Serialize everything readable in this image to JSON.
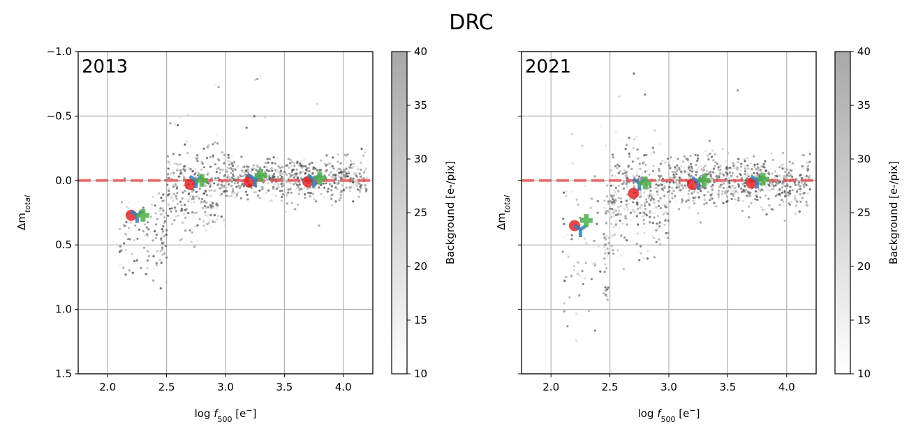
{
  "title": "DRC",
  "chart_data": [
    {
      "type": "scatter",
      "panel_label": "2013",
      "xlabel_main": "log ",
      "xlabel_var": "f",
      "xlabel_sub": "500",
      "xlabel_unit": " [e",
      "xlabel_sup": "−",
      "xlabel_end": "]",
      "ylabel_main": "Δm",
      "ylabel_sub": "total",
      "xlim": [
        1.75,
        4.25
      ],
      "ylim": [
        1.5,
        -1.0
      ],
      "xticks": [
        2.0,
        2.5,
        3.0,
        3.5,
        4.0
      ],
      "xtick_labels": [
        "2.0",
        "2.5",
        "3.0",
        "3.5",
        "4.0"
      ],
      "yticks": [
        -1.0,
        -0.5,
        0.0,
        0.5,
        1.0,
        1.5
      ],
      "ytick_labels": [
        "−1.0",
        "−0.5",
        "0.0",
        "0.5",
        "1.0",
        "1.5"
      ],
      "reference_line_y": 0.0,
      "grid": true,
      "scatter_cloud": {
        "color_quantity": "Background [e-/pix]",
        "range": [
          10,
          40
        ],
        "seed": 11
      },
      "series": [
        {
          "name": "circle",
          "marker": "circle",
          "color": "#e41a1c",
          "points": [
            [
              2.2,
              0.27
            ],
            [
              2.7,
              0.03
            ],
            [
              3.2,
              0.01
            ],
            [
              3.7,
              0.01
            ]
          ]
        },
        {
          "name": "triangle",
          "marker": "tri_down",
          "color": "#377eb8",
          "points": [
            [
              2.25,
              0.27
            ],
            [
              2.75,
              0.0
            ],
            [
              3.25,
              -0.01
            ],
            [
              3.75,
              -0.01
            ]
          ]
        },
        {
          "name": "plus",
          "marker": "plus",
          "color": "#4daf4a",
          "points": [
            [
              2.3,
              0.27
            ],
            [
              2.8,
              0.0
            ],
            [
              3.3,
              -0.04
            ],
            [
              3.8,
              -0.02
            ]
          ]
        }
      ],
      "colorbar": {
        "label": "Background [e-/pix]",
        "range": [
          10,
          40
        ],
        "ticks": [
          10,
          15,
          20,
          25,
          30,
          35,
          40
        ],
        "tick_labels": [
          "10",
          "15",
          "20",
          "25",
          "30",
          "35",
          "40"
        ]
      }
    },
    {
      "type": "scatter",
      "panel_label": "2021",
      "xlabel_main": "log ",
      "xlabel_var": "f",
      "xlabel_sub": "500",
      "xlabel_unit": " [e",
      "xlabel_sup": "−",
      "xlabel_end": "]",
      "ylabel_main": "Δm",
      "ylabel_sub": "total",
      "xlim": [
        1.75,
        4.25
      ],
      "ylim": [
        1.5,
        -1.0
      ],
      "xticks": [
        2.0,
        2.5,
        3.0,
        3.5,
        4.0
      ],
      "xtick_labels": [
        "2.0",
        "2.5",
        "3.0",
        "3.5",
        "4.0"
      ],
      "yticks": [
        -1.0,
        -0.5,
        0.0,
        0.5,
        1.0,
        1.5
      ],
      "ytick_labels": [
        "",
        "",
        "",
        "",
        "",
        ""
      ],
      "reference_line_y": 0.0,
      "grid": true,
      "scatter_cloud": {
        "color_quantity": "Background [e-/pix]",
        "range": [
          10,
          40
        ],
        "seed": 29
      },
      "series": [
        {
          "name": "circle",
          "marker": "circle",
          "color": "#e41a1c",
          "points": [
            [
              2.2,
              0.35
            ],
            [
              2.7,
              0.1
            ],
            [
              3.2,
              0.03
            ],
            [
              3.7,
              0.02
            ]
          ]
        },
        {
          "name": "triangle",
          "marker": "tri_down",
          "color": "#377eb8",
          "points": [
            [
              2.25,
              0.38
            ],
            [
              2.75,
              0.02
            ],
            [
              3.25,
              0.01
            ],
            [
              3.75,
              0.0
            ]
          ]
        },
        {
          "name": "plus",
          "marker": "plus",
          "color": "#4daf4a",
          "points": [
            [
              2.3,
              0.31
            ],
            [
              2.8,
              0.02
            ],
            [
              3.3,
              0.0
            ],
            [
              3.8,
              -0.01
            ]
          ]
        }
      ],
      "colorbar": {
        "label": "Background [e-/pix]",
        "range": [
          10,
          40
        ],
        "ticks": [
          10,
          15,
          20,
          25,
          30,
          35,
          40
        ],
        "tick_labels": [
          "10",
          "15",
          "20",
          "25",
          "30",
          "35",
          "40"
        ]
      }
    }
  ]
}
